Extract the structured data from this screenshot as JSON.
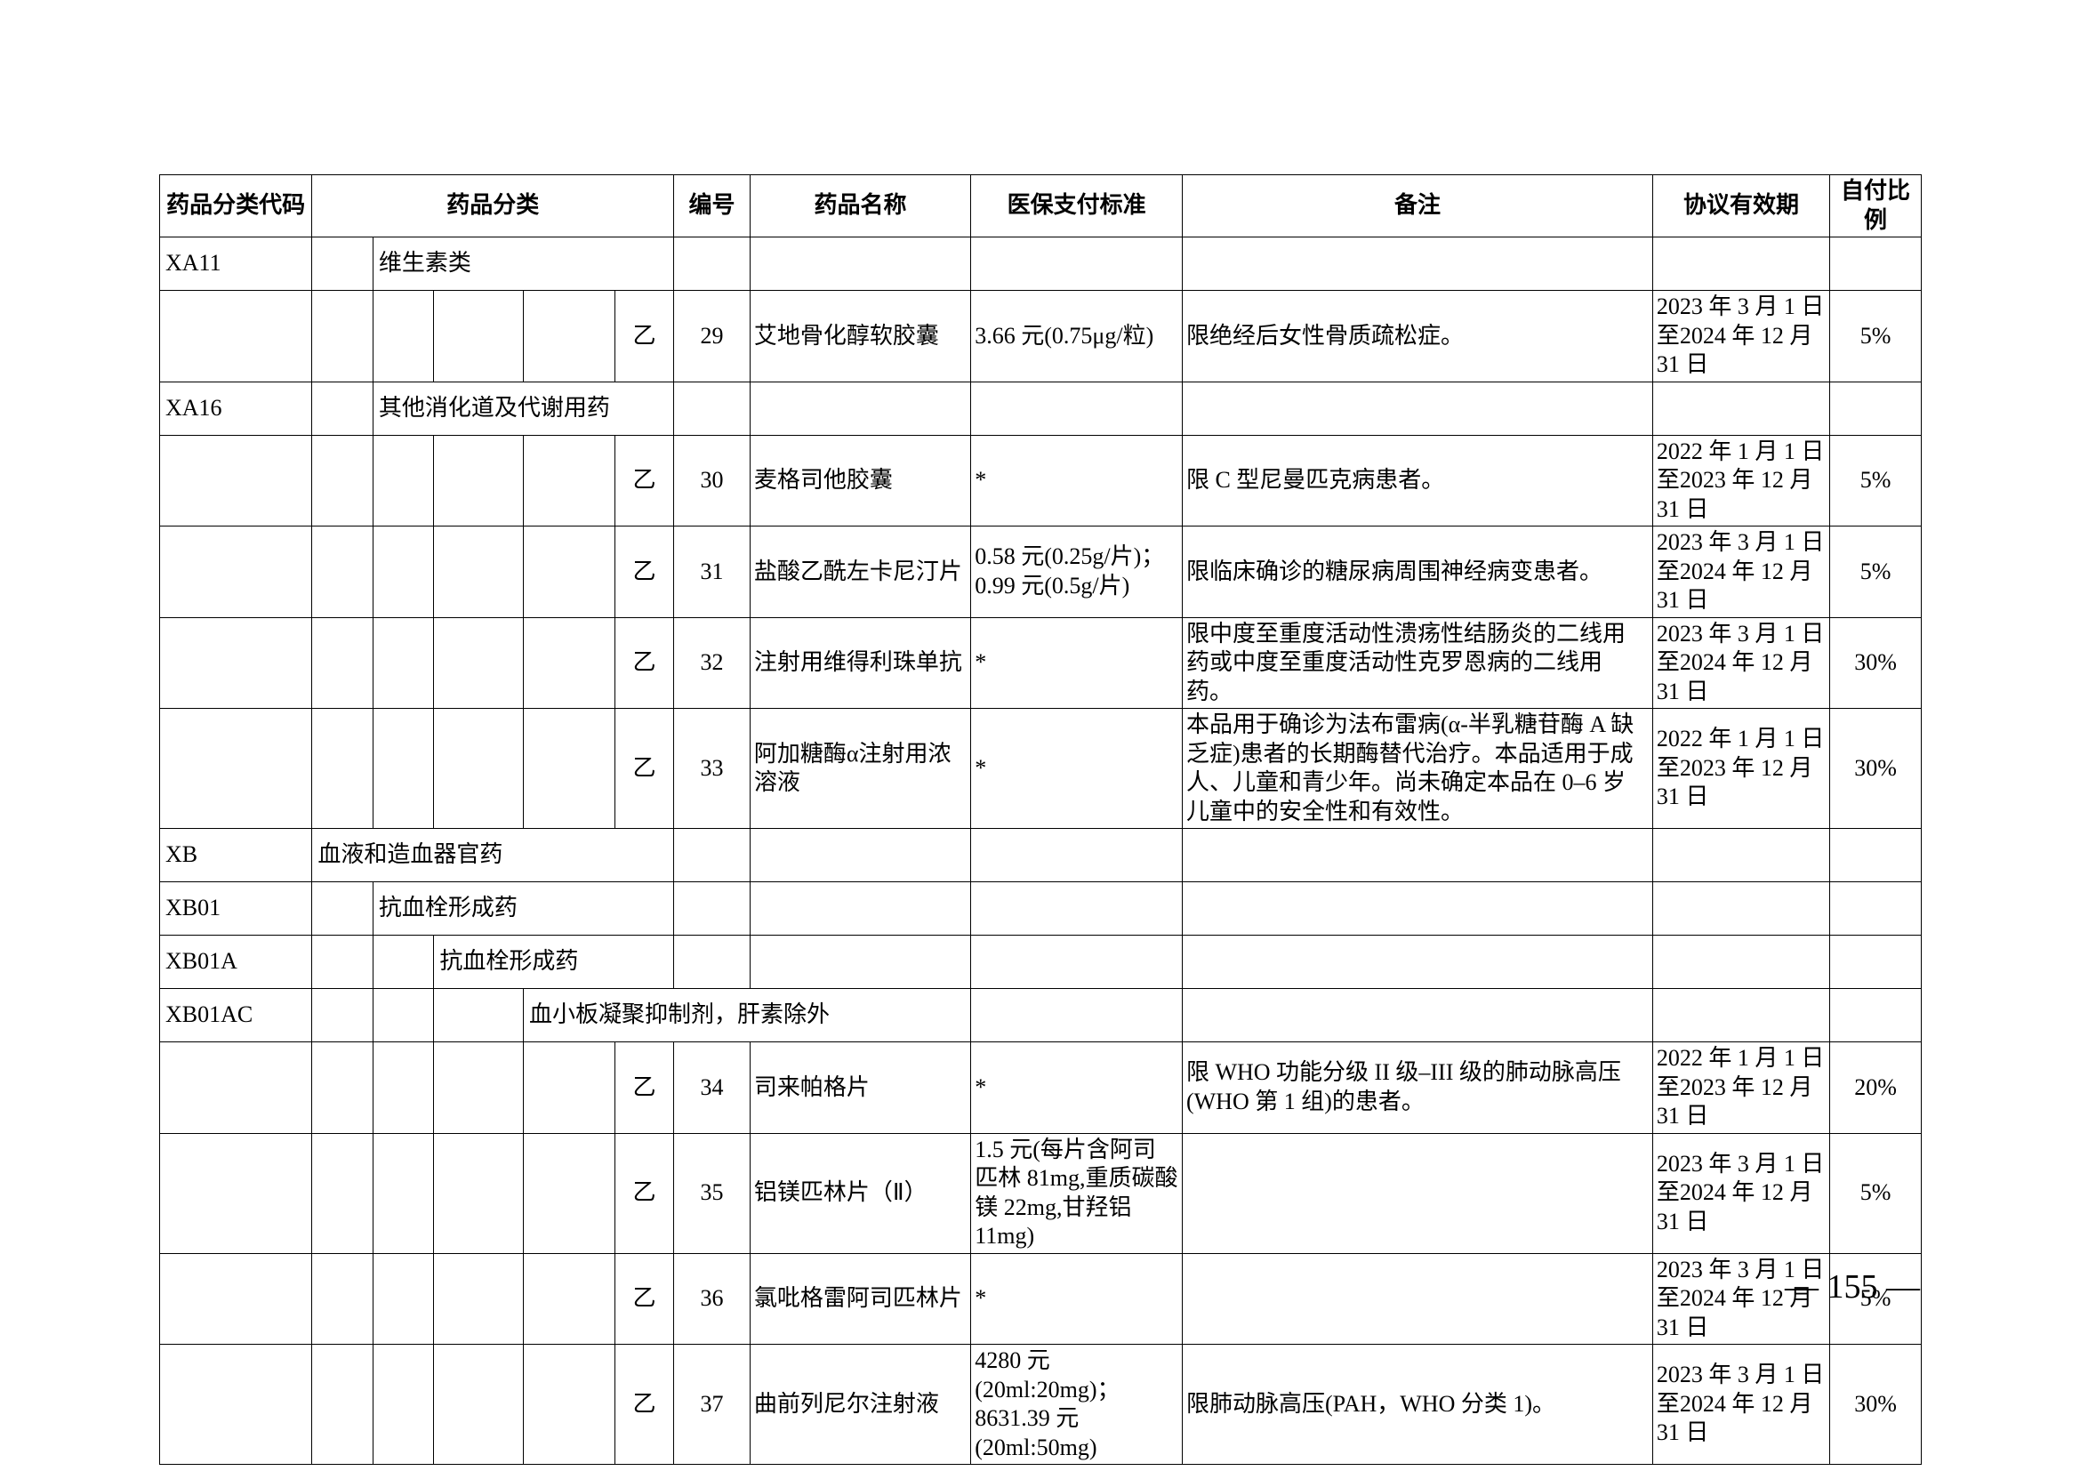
{
  "page_number": "— 155 —",
  "columns": [
    "药品分类代码",
    "药品分类",
    "编号",
    "药品名称",
    "医保支付标准",
    "备注",
    "协议有效期",
    "自付比例"
  ],
  "rows": [
    {
      "type": "cat",
      "code": "XA11",
      "level": 1,
      "label": "维生素类"
    },
    {
      "type": "drug",
      "grade": "乙",
      "num": "29",
      "name": "艾地骨化醇软胶囊",
      "std": "3.66 元(0.75μg/粒)",
      "remark": "限绝经后女性骨质疏松症。",
      "valid": "2023 年 3 月 1 日至2024 年 12 月 31 日",
      "ratio": "5%"
    },
    {
      "type": "cat",
      "code": "XA16",
      "level": 1,
      "label": "其他消化道及代谢用药"
    },
    {
      "type": "drug",
      "grade": "乙",
      "num": "30",
      "name": "麦格司他胶囊",
      "std": "*",
      "remark": "限 C 型尼曼匹克病患者。",
      "valid": "2022 年 1 月 1 日至2023 年 12 月 31 日",
      "ratio": "5%"
    },
    {
      "type": "drug",
      "grade": "乙",
      "num": "31",
      "name": "盐酸乙酰左卡尼汀片",
      "std": "0.58 元(0.25g/片)；0.99 元(0.5g/片)",
      "remark": "限临床确诊的糖尿病周围神经病变患者。",
      "valid": "2023 年 3 月 1 日至2024 年 12 月 31 日",
      "ratio": "5%"
    },
    {
      "type": "drug",
      "grade": "乙",
      "num": "32",
      "name": "注射用维得利珠单抗",
      "std": "*",
      "remark": "限中度至重度活动性溃疡性结肠炎的二线用药或中度至重度活动性克罗恩病的二线用药。",
      "valid": "2023 年 3 月 1 日至2024 年 12 月 31 日",
      "ratio": "30%"
    },
    {
      "type": "drug",
      "grade": "乙",
      "num": "33",
      "name": "阿加糖酶α注射用浓溶液",
      "std": "*",
      "remark": "本品用于确诊为法布雷病(α-半乳糖苷酶 A 缺乏症)患者的长期酶替代治疗。本品适用于成人、儿童和青少年。尚未确定本品在 0–6 岁儿童中的安全性和有效性。",
      "valid": "2022 年 1 月 1 日至2023 年 12 月 31 日",
      "ratio": "30%"
    },
    {
      "type": "cat",
      "code": "XB",
      "level": 0,
      "label": "血液和造血器官药"
    },
    {
      "type": "cat",
      "code": "XB01",
      "level": 1,
      "label": "抗血栓形成药"
    },
    {
      "type": "cat",
      "code": "XB01A",
      "level": 2,
      "label": "抗血栓形成药"
    },
    {
      "type": "cat",
      "code": "XB01AC",
      "level": 3,
      "label": "血小板凝聚抑制剂，肝素除外"
    },
    {
      "type": "drug",
      "grade": "乙",
      "num": "34",
      "name": "司来帕格片",
      "std": "*",
      "remark": "限 WHO 功能分级 II 级–III 级的肺动脉高压(WHO 第 1 组)的患者。",
      "valid": "2022 年 1 月 1 日至2023 年 12 月 31 日",
      "ratio": "20%"
    },
    {
      "type": "drug",
      "grade": "乙",
      "num": "35",
      "name": "铝镁匹林片（Ⅱ）",
      "std": "1.5 元(每片含阿司匹林 81mg,重质碳酸镁 22mg,甘羟铝 11mg)",
      "remark": "",
      "valid": "2023 年 3 月 1 日至2024 年 12 月 31 日",
      "ratio": "5%"
    },
    {
      "type": "drug",
      "grade": "乙",
      "num": "36",
      "name": "氯吡格雷阿司匹林片",
      "std": "*",
      "remark": "",
      "valid": "2023 年 3 月 1 日至2024 年 12 月 31 日",
      "ratio": "5%"
    },
    {
      "type": "drug",
      "grade": "乙",
      "num": "37",
      "name": "曲前列尼尔注射液",
      "std": "4280 元(20ml:20mg)；8631.39 元(20ml:50mg)",
      "remark": "限肺动脉高压(PAH，WHO 分类 1)。",
      "valid": "2023 年 3 月 1 日至2024 年 12 月 31 日",
      "ratio": "30%"
    }
  ]
}
